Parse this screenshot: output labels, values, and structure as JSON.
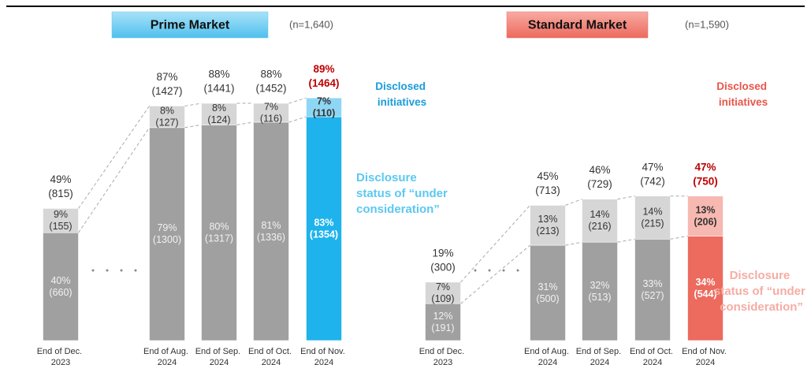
{
  "chart_data": [
    {
      "type": "bar",
      "title": "Prime Market",
      "subtitle": "(n=1,640)",
      "title_color": "#5cc8f0",
      "categories": [
        "End of Dec. 2023",
        "End of Aug. 2024",
        "End of Sep. 2024",
        "End of Oct. 2024",
        "End of Nov. 2024"
      ],
      "ylim": [
        0,
        100
      ],
      "series": [
        {
          "name": "Disclosed initiatives",
          "color": "#a0a0a0",
          "highlight_color": "#1eb3ec",
          "legend_color": "#1a9cd8",
          "values": [
            40,
            79,
            80,
            81,
            83
          ],
          "value_labels": [
            "40%",
            "79%",
            "80%",
            "81%",
            "83%"
          ],
          "count_labels": [
            "(660)",
            "(1300)",
            "(1317)",
            "(1336)",
            "(1354)"
          ]
        },
        {
          "name": "Disclosure status of “under consideration”",
          "color": "#d6d6d6",
          "highlight_color": "#8ed7f4",
          "legend_color": "#5cc8f0",
          "values": [
            9,
            8,
            8,
            7,
            7
          ],
          "value_labels": [
            "9%",
            "8%",
            "8%",
            "7%",
            "7%"
          ],
          "count_labels": [
            "(155)",
            "(127)",
            "(124)",
            "(116)",
            "(110)"
          ]
        }
      ],
      "totals": [
        49,
        87,
        88,
        88,
        89
      ],
      "total_labels": [
        "49%",
        "87%",
        "88%",
        "88%",
        "89%"
      ],
      "total_count_labels": [
        "(815)",
        "(1427)",
        "(1441)",
        "(1452)",
        "(1464)"
      ]
    },
    {
      "type": "bar",
      "title": "Standard Market",
      "subtitle": "(n=1,590)",
      "title_color": "#ef6f64",
      "categories": [
        "End of Dec. 2023",
        "End of Aug. 2024",
        "End of Sep. 2024",
        "End of Oct. 2024",
        "End of Nov. 2024"
      ],
      "ylim": [
        0,
        50
      ],
      "series": [
        {
          "name": "Disclosed initiatives",
          "color": "#a0a0a0",
          "highlight_color": "#ec6a5e",
          "legend_color": "#e8554a",
          "values": [
            12,
            31,
            32,
            33,
            34
          ],
          "value_labels": [
            "12%",
            "31%",
            "32%",
            "33%",
            "34%"
          ],
          "count_labels": [
            "(191)",
            "(500)",
            "(513)",
            "(527)",
            "(544)"
          ]
        },
        {
          "name": "Disclosure status of “under consideration”",
          "color": "#d6d6d6",
          "highlight_color": "#f6b8b1",
          "legend_color": "#f4ada4",
          "values": [
            7,
            13,
            14,
            14,
            13
          ],
          "value_labels": [
            "7%",
            "13%",
            "14%",
            "14%",
            "13%"
          ],
          "count_labels": [
            "(109)",
            "(213)",
            "(216)",
            "(215)",
            "(206)"
          ]
        }
      ],
      "totals": [
        19,
        45,
        46,
        47,
        47
      ],
      "total_labels": [
        "19%",
        "45%",
        "46%",
        "47%",
        "47%"
      ],
      "total_count_labels": [
        "(300)",
        "(713)",
        "(729)",
        "(742)",
        "(750)"
      ]
    }
  ]
}
